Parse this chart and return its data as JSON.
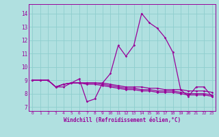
{
  "background_color": "#b0e0e0",
  "grid_color": "#8ecece",
  "line_color": "#990099",
  "xlabel": "Windchill (Refroidissement éolien,°C)",
  "xlim": [
    -0.5,
    23.5
  ],
  "ylim": [
    6.7,
    14.7
  ],
  "yticks": [
    7,
    8,
    9,
    10,
    11,
    12,
    13,
    14
  ],
  "xticks": [
    0,
    1,
    2,
    3,
    4,
    5,
    6,
    7,
    8,
    9,
    10,
    11,
    12,
    13,
    14,
    15,
    16,
    17,
    18,
    19,
    20,
    21,
    22,
    23
  ],
  "series": [
    [
      9.0,
      9.0,
      9.0,
      8.5,
      8.5,
      8.8,
      9.1,
      7.4,
      7.6,
      8.8,
      9.5,
      11.6,
      10.8,
      11.6,
      14.0,
      13.3,
      12.9,
      12.2,
      11.1,
      8.3,
      7.8,
      8.5,
      8.5,
      7.8
    ],
    [
      9.0,
      9.0,
      9.0,
      8.5,
      8.7,
      8.8,
      8.8,
      8.8,
      8.8,
      8.8,
      8.7,
      8.6,
      8.5,
      8.5,
      8.5,
      8.4,
      8.4,
      8.3,
      8.3,
      8.3,
      8.2,
      8.2,
      8.2,
      8.1
    ],
    [
      9.0,
      9.0,
      9.0,
      8.5,
      8.7,
      8.8,
      8.8,
      8.8,
      8.8,
      8.7,
      8.6,
      8.5,
      8.4,
      8.4,
      8.3,
      8.3,
      8.2,
      8.2,
      8.2,
      8.1,
      8.0,
      8.0,
      8.0,
      7.9
    ],
    [
      9.0,
      9.0,
      9.0,
      8.5,
      8.7,
      8.8,
      8.8,
      8.7,
      8.7,
      8.6,
      8.5,
      8.4,
      8.3,
      8.3,
      8.2,
      8.2,
      8.1,
      8.1,
      8.1,
      8.0,
      7.9,
      7.9,
      7.9,
      7.8
    ]
  ]
}
